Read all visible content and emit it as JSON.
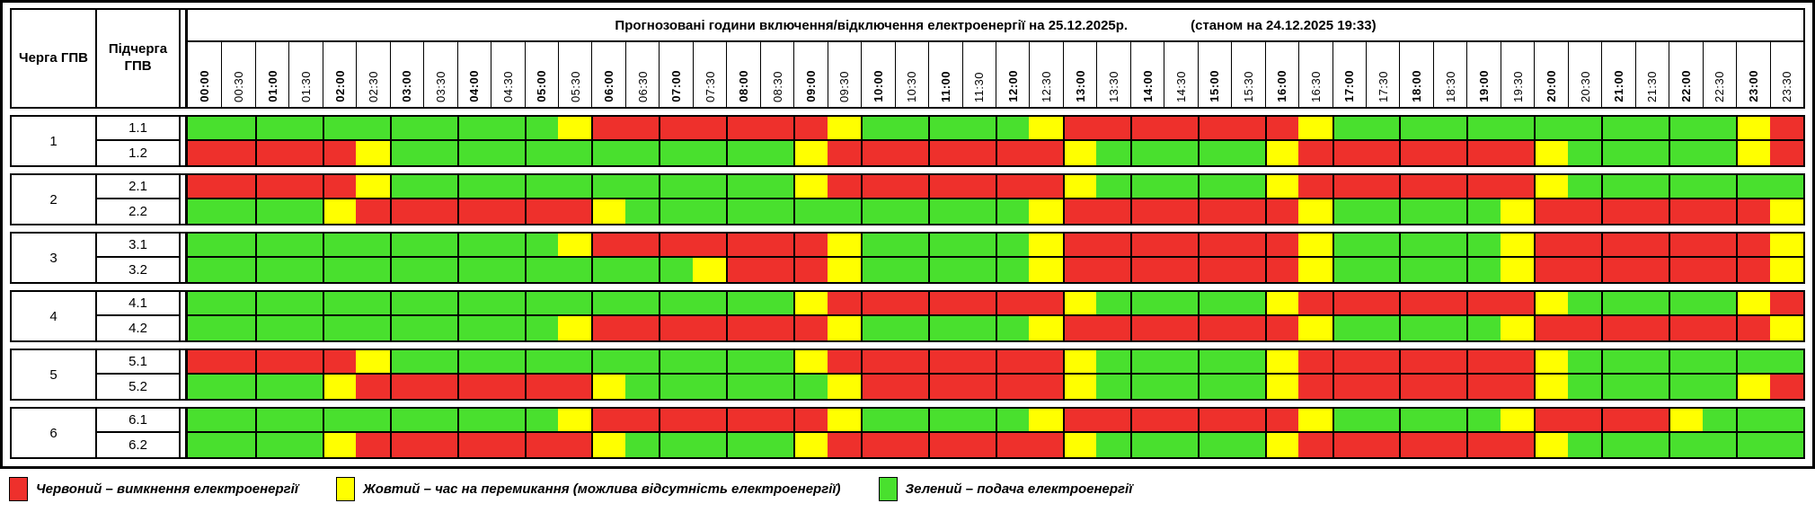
{
  "header": {
    "queue_col": "Черга ГПВ",
    "subqueue_col": "Підчерга ГПВ",
    "title_main": "Прогнозовані години включення/відключення електроенергії на 25.12.2025р.",
    "title_note": "(станом на 24.12.2025 19:33)"
  },
  "times": [
    "00:00",
    "00:30",
    "01:00",
    "01:30",
    "02:00",
    "02:30",
    "03:00",
    "03:30",
    "04:00",
    "04:30",
    "05:00",
    "05:30",
    "06:00",
    "06:30",
    "07:00",
    "07:30",
    "08:00",
    "08:30",
    "09:00",
    "09:30",
    "10:00",
    "10:30",
    "11:00",
    "11:30",
    "12:00",
    "12:30",
    "13:00",
    "13:30",
    "14:00",
    "14:30",
    "15:00",
    "15:30",
    "16:00",
    "16:30",
    "17:00",
    "17:30",
    "18:00",
    "18:30",
    "19:00",
    "19:30",
    "20:00",
    "20:30",
    "21:00",
    "21:30",
    "22:00",
    "22:30",
    "23:00",
    "23:30"
  ],
  "colors": {
    "R": "#ee302c",
    "Y": "#ffff00",
    "G": "#49e02e"
  },
  "groups": [
    {
      "queue": "1",
      "rows": [
        {
          "label": "1.1",
          "cells": "GGGGGGGGGGGYRRRRRRRYGGGGGYRRRRRRRYGGGGGGGGGGGGYR"
        },
        {
          "label": "1.2",
          "cells": "RRRRRYGGGGGGGGGGGGYRRRRRRRYGGGGGYRRRRRRRYGGGGGYR"
        }
      ]
    },
    {
      "queue": "2",
      "rows": [
        {
          "label": "2.1",
          "cells": "RRRRRYGGGGGGGGGGGGYRRRRRRRYGGGGGYRRRRRRRYGGGGGGG"
        },
        {
          "label": "2.2",
          "cells": "GGGGYRRRRRRRYGGGGGGGGGGGGYRRRRRRRYGGGGGYRRRRRRRY"
        }
      ]
    },
    {
      "queue": "3",
      "rows": [
        {
          "label": "3.1",
          "cells": "GGGGGGGGGGGYRRRRRRRYGGGGGYRRRRRRRYGGGGGYRRRRRRRY"
        },
        {
          "label": "3.2",
          "cells": "GGGGGGGGGGGGGGGYRRRYGGGGGYRRRRRRRYGGGGGYRRRRRRRY"
        }
      ]
    },
    {
      "queue": "4",
      "rows": [
        {
          "label": "4.1",
          "cells": "GGGGGGGGGGGGGGGGGGYRRRRRRRYGGGGGYRRRRRRRYGGGGGYR"
        },
        {
          "label": "4.2",
          "cells": "GGGGGGGGGGGYRRRRRRRYGGGGGYRRRRRRRYGGGGGYRRRRRRRY"
        }
      ]
    },
    {
      "queue": "5",
      "rows": [
        {
          "label": "5.1",
          "cells": "RRRRRYGGGGGGGGGGGGYRRRRRRRYGGGGGYRRRRRRRYGGGGGGG"
        },
        {
          "label": "5.2",
          "cells": "GGGGYRRRRRRRYGGGGGGYRRRRRRYGGGGGYRRRRRRRYGGGGGYR"
        }
      ]
    },
    {
      "queue": "6",
      "rows": [
        {
          "label": "6.1",
          "cells": "GGGGGGGGGGGYRRRRRRRYGGGGGYRRRRRRRYGGGGGYRRRRYGGG"
        },
        {
          "label": "6.2",
          "cells": "GGGGYRRRRRRRYGGGGGYRRRRRRRYGGGGGYRRRRRRRYGGGGGGG"
        }
      ]
    }
  ],
  "legend": {
    "items": [
      {
        "key": "R",
        "label": "Червоний – вимкнення електроенергії"
      },
      {
        "key": "Y",
        "label": "Жовтий – час на перемикання (можлива відсутність електроенергії)"
      },
      {
        "key": "G",
        "label": "Зелений – подача електроенергії"
      }
    ]
  }
}
